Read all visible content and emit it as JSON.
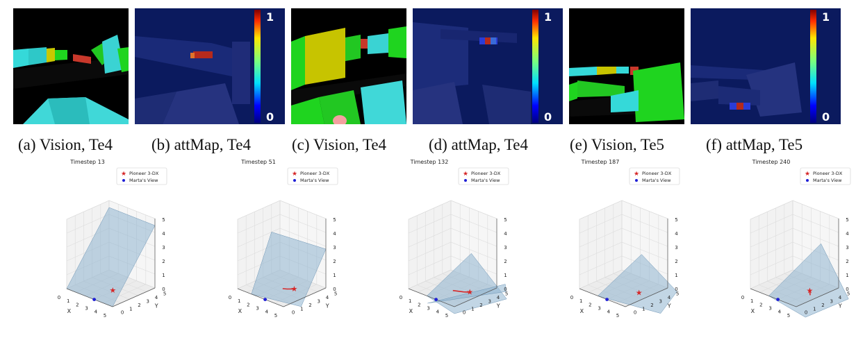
{
  "panels": [
    {
      "type": "vision"
    },
    {
      "type": "attmap",
      "colorbar": {
        "max_label": "1",
        "min_label": "0"
      }
    },
    {
      "type": "vision"
    },
    {
      "type": "attmap",
      "colorbar": {
        "max_label": "1",
        "min_label": "0"
      }
    },
    {
      "type": "vision"
    },
    {
      "type": "attmap",
      "colorbar": {
        "max_label": "1",
        "min_label": "0"
      }
    }
  ],
  "captions": [
    "(a) Vision, Te4",
    "(b) attMap, Te4",
    "(c) Vision, Te4",
    "(d) attMap, Te4",
    "(e) Vision, Te5",
    "(f) attMap, Te5"
  ],
  "legend": {
    "pioneer": "Pioneer 3-DX",
    "marta": "Marta's View"
  },
  "axes": {
    "x_label": "X",
    "y_label": "Y",
    "x_ticks": [
      "0",
      "1",
      "2",
      "3",
      "4",
      "5"
    ],
    "y_ticks": [
      "0",
      "1",
      "2",
      "3",
      "4",
      "5"
    ],
    "z_ticks": [
      "0",
      "1",
      "2",
      "3",
      "4",
      "5"
    ]
  },
  "colors": {
    "pioneer": "#d62728",
    "marta": "#1f1fd6",
    "fov": "#8fb4d0"
  },
  "chart_data": [
    {
      "type": "scatter",
      "title": "Timestep 13",
      "xlim": [
        0,
        5
      ],
      "ylim": [
        0,
        5
      ],
      "zlim": [
        0,
        5
      ],
      "series": [
        {
          "name": "Pioneer 3-DX",
          "marker": "star",
          "points": [
            [
              2.9,
              2.3,
              0
            ]
          ],
          "trail": []
        },
        {
          "name": "Marta's View",
          "marker": "dot",
          "points": [
            [
              3.0,
              0.0,
              0
            ]
          ]
        }
      ]
    },
    {
      "type": "scatter",
      "title": "Timestep 51",
      "xlim": [
        0,
        5
      ],
      "ylim": [
        0,
        5
      ],
      "zlim": [
        0,
        5
      ],
      "series": [
        {
          "name": "Pioneer 3-DX",
          "marker": "star",
          "points": [
            [
              3.3,
              3.1,
              0
            ]
          ],
          "trail": [
            [
              2.6,
              2.5,
              0
            ],
            [
              2.9,
              2.7,
              0
            ],
            [
              3.1,
              2.9,
              0
            ],
            [
              3.3,
              3.1,
              0
            ]
          ]
        },
        {
          "name": "Marta's View",
          "marker": "dot",
          "points": [
            [
              3.0,
              0.0,
              0
            ]
          ]
        }
      ]
    },
    {
      "type": "scatter",
      "title": "Timestep 132",
      "xlim": [
        0,
        5
      ],
      "ylim": [
        0,
        5
      ],
      "zlim": [
        0,
        5
      ],
      "series": [
        {
          "name": "Pioneer 3-DX",
          "marker": "star",
          "points": [
            [
              4.0,
              2.9,
              0
            ]
          ],
          "trail": [
            [
              2.8,
              2.2,
              0
            ],
            [
              3.2,
              2.4,
              0
            ],
            [
              3.6,
              2.6,
              0
            ],
            [
              4.0,
              2.9,
              0
            ]
          ]
        },
        {
          "name": "Marta's View",
          "marker": "dot",
          "points": [
            [
              3.0,
              0.0,
              0
            ]
          ]
        }
      ]
    },
    {
      "type": "scatter",
      "title": "Timestep 187",
      "xlim": [
        0,
        5
      ],
      "ylim": [
        0,
        5
      ],
      "zlim": [
        0,
        5
      ],
      "series": [
        {
          "name": "Pioneer 3-DX",
          "marker": "star",
          "points": [
            [
              4.0,
              2.7,
              0
            ]
          ],
          "trail": [
            [
              4.05,
              2.75,
              0
            ],
            [
              4.0,
              2.7,
              0
            ]
          ]
        },
        {
          "name": "Marta's View",
          "marker": "dot",
          "points": [
            [
              3.0,
              0.0,
              0
            ]
          ]
        }
      ]
    },
    {
      "type": "scatter",
      "title": "Timestep 240",
      "xlim": [
        0,
        5
      ],
      "ylim": [
        0,
        5
      ],
      "zlim": [
        0,
        5
      ],
      "series": [
        {
          "name": "Pioneer 3-DX",
          "marker": "star",
          "points": [
            [
              3.7,
              3.0,
              0
            ]
          ],
          "trail": [
            [
              3.7,
              3.0,
              0
            ],
            [
              3.9,
              2.8,
              0
            ],
            [
              4.1,
              2.6,
              0
            ],
            [
              4.3,
              2.4,
              0
            ]
          ]
        },
        {
          "name": "Marta's View",
          "marker": "dot",
          "points": [
            [
              3.0,
              0.0,
              0
            ]
          ]
        }
      ]
    }
  ]
}
